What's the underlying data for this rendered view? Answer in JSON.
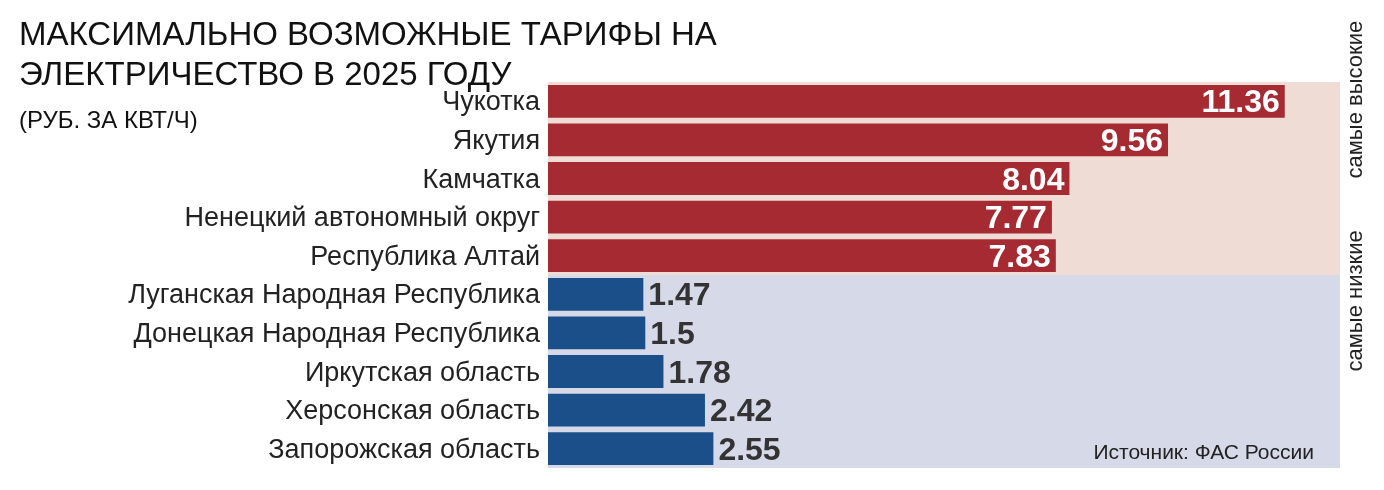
{
  "chart_data": {
    "type": "bar",
    "orientation": "horizontal",
    "title": "МАКСИМАЛЬНО ВОЗМОЖНЫЕ ТАРИФЫ НА ЭЛЕКТРИЧЕСТВО В 2025 ГОДУ",
    "subtitle": "(РУБ. ЗА КВТ/Ч)",
    "categories": [
      "Чукотка",
      "Якутия",
      "Камчатка",
      "Ненецкий автономный округ",
      "Республика Алтай",
      "Луганская Народная Республика",
      "Донецкая Народная Республика",
      "Иркутская область",
      "Херсонская область",
      "Запорожская область"
    ],
    "values": [
      11.36,
      9.56,
      8.04,
      7.77,
      7.83,
      1.47,
      1.5,
      1.78,
      2.42,
      2.55
    ],
    "colors": [
      "#a52a32",
      "#a52a32",
      "#a52a32",
      "#a52a32",
      "#a52a32",
      "#1a4f8a",
      "#1a4f8a",
      "#1a4f8a",
      "#1a4f8a",
      "#1a4f8a"
    ],
    "data_labels": true,
    "bands": [
      {
        "axis": "y",
        "from": "Чукотка",
        "to": "Республика Алтай",
        "label": "самые высокие",
        "color": "#efdcd5"
      },
      {
        "axis": "y",
        "from": "Луганская Народная Республика",
        "to": "Запорожская область",
        "label": "самые низкие",
        "color": "#d6d9e7"
      }
    ],
    "annotations": [
      "Источник: ФАС России"
    ]
  }
}
